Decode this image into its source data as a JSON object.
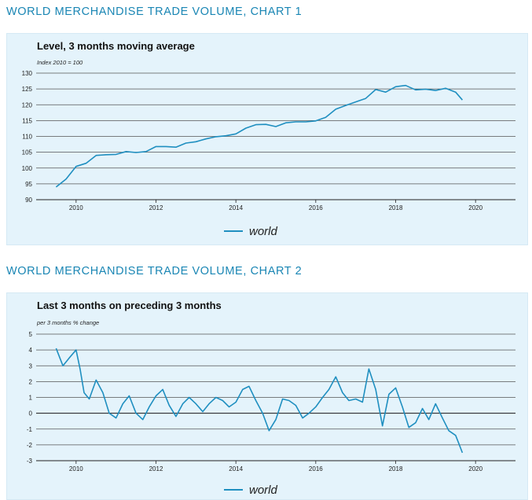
{
  "chart1_heading": "WORLD MERCHANDISE TRADE VOLUME, CHART 1",
  "chart2_heading": "WORLD MERCHANDISE TRADE VOLUME, CHART 2",
  "colors": {
    "heading": "#1a86b4",
    "line": "#1f8fc0",
    "panel": "#e4f3fb",
    "grid": "#555555"
  },
  "chart_data": [
    {
      "type": "line",
      "title": "Level, 3 months moving average",
      "subtitle": "Index 2010 = 100",
      "ylim": [
        90,
        130
      ],
      "yticks": [
        90,
        95,
        100,
        105,
        110,
        115,
        120,
        125,
        130
      ],
      "xlim": [
        2009.0,
        2021.0
      ],
      "xticks": [
        2010,
        2012,
        2014,
        2016,
        2018,
        2020
      ],
      "grid": true,
      "legend_position": "bottom-center",
      "series": [
        {
          "name": "world",
          "x": [
            2009.5,
            2009.75,
            2010.0,
            2010.25,
            2010.5,
            2010.75,
            2011.0,
            2011.25,
            2011.5,
            2011.75,
            2012.0,
            2012.25,
            2012.5,
            2012.75,
            2013.0,
            2013.25,
            2013.5,
            2013.75,
            2014.0,
            2014.25,
            2014.5,
            2014.75,
            2015.0,
            2015.25,
            2015.5,
            2015.75,
            2016.0,
            2016.25,
            2016.5,
            2016.75,
            2017.0,
            2017.25,
            2017.5,
            2017.75,
            2018.0,
            2018.25,
            2018.5,
            2018.75,
            2019.0,
            2019.25,
            2019.5,
            2019.67
          ],
          "y": [
            94,
            96.5,
            100.5,
            101.5,
            104,
            104.2,
            104.3,
            105.2,
            104.9,
            105.2,
            106.8,
            106.8,
            106.6,
            107.9,
            108.3,
            109.2,
            109.9,
            110.2,
            110.8,
            112.6,
            113.7,
            113.8,
            113.1,
            114.3,
            114.6,
            114.6,
            114.9,
            116.0,
            118.6,
            119.8,
            120.9,
            122.0,
            124.8,
            124.0,
            125.7,
            126.1,
            124.7,
            124.9,
            124.5,
            125.2,
            124.0,
            121.5
          ]
        }
      ]
    },
    {
      "type": "line",
      "title": "Last 3 months on preceding 3 months",
      "subtitle": "per 3 months % change",
      "ylim": [
        -3,
        5
      ],
      "yticks": [
        -3,
        -2,
        -1,
        0,
        1,
        2,
        3,
        4,
        5
      ],
      "xlim": [
        2009.0,
        2021.0
      ],
      "xticks": [
        2010,
        2012,
        2014,
        2016,
        2018,
        2020
      ],
      "grid": true,
      "legend_position": "bottom-center",
      "series": [
        {
          "name": "world",
          "x": [
            2009.5,
            2009.67,
            2009.83,
            2010.0,
            2010.1,
            2010.2,
            2010.33,
            2010.5,
            2010.67,
            2010.83,
            2011.0,
            2011.17,
            2011.33,
            2011.5,
            2011.67,
            2011.83,
            2012.0,
            2012.17,
            2012.33,
            2012.5,
            2012.67,
            2012.83,
            2013.0,
            2013.17,
            2013.33,
            2013.5,
            2013.67,
            2013.83,
            2014.0,
            2014.17,
            2014.33,
            2014.5,
            2014.67,
            2014.83,
            2015.0,
            2015.17,
            2015.33,
            2015.5,
            2015.67,
            2015.83,
            2016.0,
            2016.17,
            2016.33,
            2016.5,
            2016.67,
            2016.83,
            2017.0,
            2017.17,
            2017.33,
            2017.5,
            2017.67,
            2017.83,
            2018.0,
            2018.17,
            2018.33,
            2018.5,
            2018.67,
            2018.83,
            2019.0,
            2019.17,
            2019.33,
            2019.5,
            2019.58,
            2019.67
          ],
          "y": [
            4.1,
            3.0,
            3.5,
            4.0,
            2.8,
            1.3,
            0.9,
            2.1,
            1.3,
            0.0,
            -0.3,
            0.6,
            1.1,
            0.0,
            -0.4,
            0.4,
            1.1,
            1.5,
            0.5,
            -0.2,
            0.6,
            1.0,
            0.6,
            0.1,
            0.6,
            1.0,
            0.8,
            0.4,
            0.7,
            1.5,
            1.7,
            0.8,
            0.0,
            -1.1,
            -0.4,
            0.9,
            0.8,
            0.5,
            -0.3,
            0.0,
            0.4,
            1.0,
            1.5,
            2.3,
            1.3,
            0.8,
            0.9,
            0.7,
            2.8,
            1.5,
            -0.8,
            1.2,
            1.6,
            0.4,
            -0.9,
            -0.6,
            0.3,
            -0.4,
            0.6,
            -0.3,
            -1.1,
            -1.4,
            -1.9,
            -2.5
          ]
        }
      ]
    }
  ]
}
